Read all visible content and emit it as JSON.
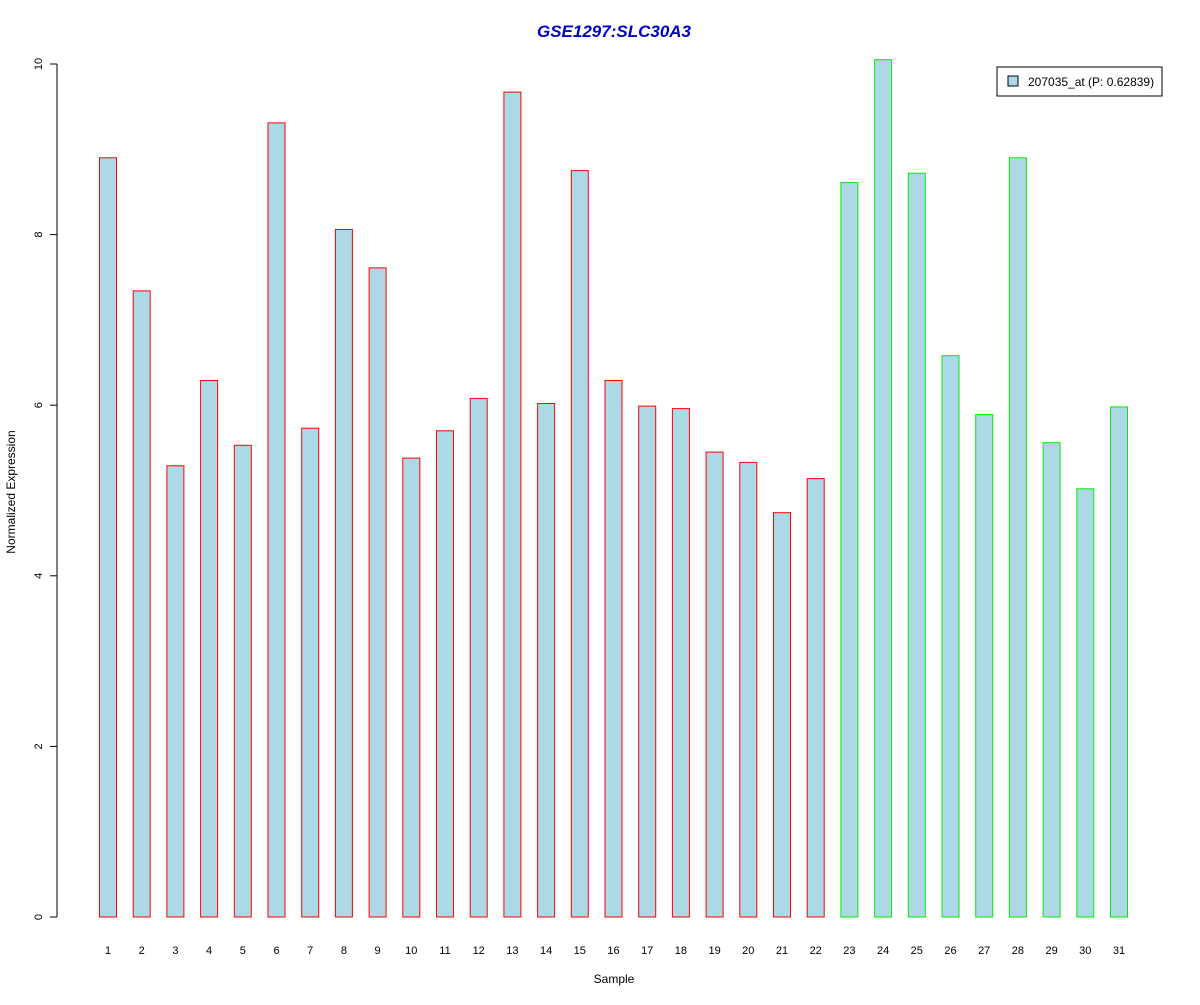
{
  "chart_data": {
    "type": "bar",
    "title": "GSE1297:SLC30A3",
    "xlabel": "Sample",
    "ylabel": "Normalized Expression",
    "ylim": [
      0,
      10
    ],
    "yticks": [
      0,
      2,
      4,
      6,
      8,
      10
    ],
    "grid": false,
    "legend": {
      "position": "top-right",
      "entries": [
        "207035_at (P: 0.62839)"
      ]
    },
    "categories": [
      "1",
      "2",
      "3",
      "4",
      "5",
      "6",
      "7",
      "8",
      "9",
      "10",
      "11",
      "12",
      "13",
      "14",
      "15",
      "16",
      "17",
      "18",
      "19",
      "20",
      "21",
      "22",
      "23",
      "24",
      "25",
      "26",
      "27",
      "28",
      "29",
      "30",
      "31"
    ],
    "series": [
      {
        "name": "207035_at (P: 0.62839)",
        "values": [
          8.9,
          7.34,
          5.29,
          6.29,
          5.53,
          9.31,
          5.73,
          8.06,
          7.61,
          5.38,
          5.7,
          6.08,
          9.67,
          6.02,
          8.75,
          6.29,
          5.99,
          5.96,
          5.45,
          5.33,
          4.74,
          5.14,
          8.61,
          10.05,
          8.72,
          6.58,
          5.89,
          8.9,
          5.56,
          5.02,
          5.98
        ],
        "groups": [
          "a",
          "a",
          "a",
          "a",
          "a",
          "a",
          "a",
          "a",
          "a",
          "a",
          "a",
          "a",
          "a",
          "a",
          "a",
          "a",
          "a",
          "a",
          "a",
          "a",
          "a",
          "a",
          "b",
          "b",
          "b",
          "b",
          "b",
          "b",
          "b",
          "b",
          "b"
        ]
      }
    ],
    "colors": {
      "fill": "#add8e6",
      "group_a_border": "#ff0000",
      "group_b_border": "#00ee00",
      "title": "#0000cd",
      "axis": "#000000"
    }
  }
}
